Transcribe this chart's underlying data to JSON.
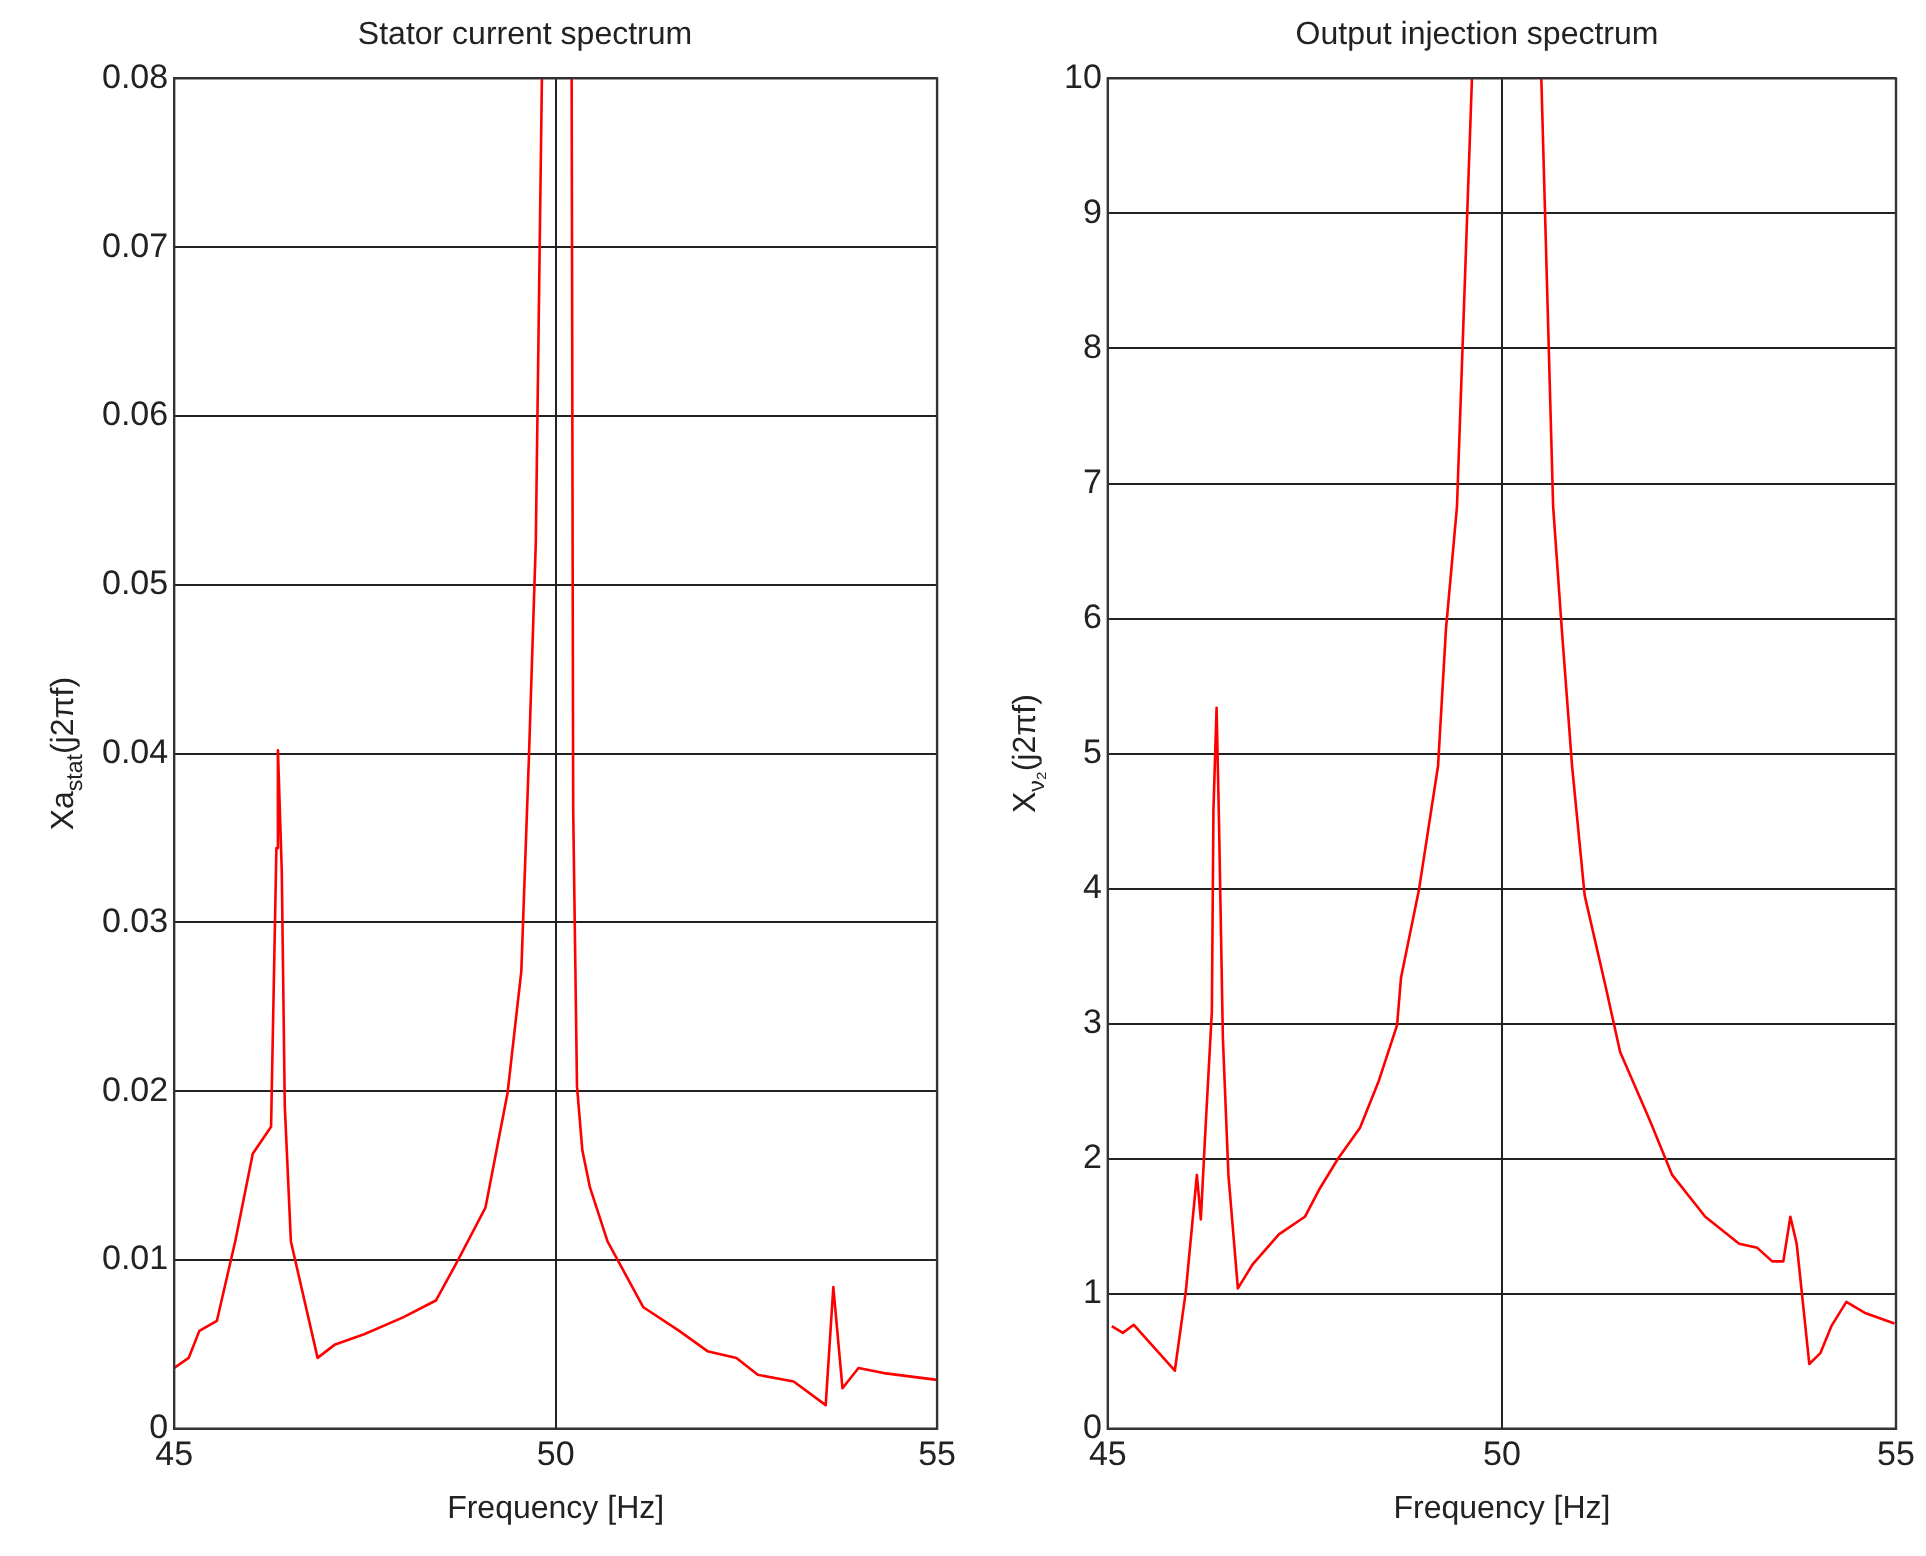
{
  "chart_data": [
    {
      "type": "line",
      "title": "Stator current spectrum",
      "xlabel": "Frequency [Hz]",
      "ylabel": "Xa$_{stat}$(j2πf)",
      "color": "#ff0000",
      "grid": true,
      "x": [
        45.0,
        45.19,
        45.33,
        45.56,
        45.8,
        46.03,
        46.27,
        46.34,
        46.36,
        46.41,
        46.45,
        46.53,
        46.88,
        47.11,
        47.49,
        48.0,
        48.43,
        48.71,
        49.08,
        49.37,
        49.55,
        49.65,
        49.74,
        49.82,
        50.0,
        50.21,
        50.23,
        50.28,
        50.35,
        50.45,
        50.68,
        51.15,
        51.62,
        51.99,
        52.37,
        52.65,
        53.12,
        53.54,
        53.64,
        53.76,
        53.97,
        54.3,
        55.0
      ],
      "values": [
        0.0036,
        0.0042,
        0.0058,
        0.0064,
        0.0111,
        0.0163,
        0.0179,
        0.0344,
        0.0402,
        0.0331,
        0.0191,
        0.0111,
        0.0042,
        0.005,
        0.0056,
        0.0066,
        0.0076,
        0.0099,
        0.0131,
        0.0199,
        0.0271,
        0.0398,
        0.0525,
        0.08,
        null,
        0.08,
        0.0367,
        0.0203,
        0.0165,
        0.0143,
        0.0111,
        0.0072,
        0.0058,
        0.0046,
        0.0042,
        0.0032,
        0.0028,
        0.0014,
        0.0084,
        0.0024,
        0.0036,
        0.0033,
        0.0029
      ],
      "xlim": [
        45,
        55
      ],
      "xticks": [
        45,
        50,
        55
      ],
      "ylim": [
        0,
        0.08
      ],
      "yticks": [
        0,
        0.01,
        0.02,
        0.03,
        0.04,
        0.05,
        0.06,
        0.07,
        0.08
      ]
    },
    {
      "type": "line",
      "title": "Output injection spectrum",
      "xlabel": "Frequency [Hz]",
      "ylabel": "X$_{ν₂}$(j2πf)",
      "color": "#ff0000",
      "grid": true,
      "x": [
        45.05,
        45.19,
        45.33,
        45.85,
        45.99,
        46.13,
        46.18,
        46.24,
        46.32,
        46.34,
        46.38,
        46.41,
        46.46,
        46.53,
        46.65,
        46.84,
        47.17,
        47.5,
        47.68,
        47.92,
        48.2,
        48.44,
        48.67,
        48.72,
        48.95,
        49.19,
        49.29,
        49.43,
        49.62,
        50.0,
        50.5,
        50.65,
        50.76,
        50.89,
        51.05,
        51.31,
        51.5,
        51.88,
        52.16,
        52.58,
        53.01,
        53.24,
        53.43,
        53.57,
        53.66,
        53.74,
        53.9,
        54.04,
        54.18,
        54.37,
        54.6,
        54.98
      ],
      "values": [
        0.76,
        0.71,
        0.77,
        0.43,
        1.02,
        1.88,
        1.55,
        2.23,
        3.09,
        4.58,
        5.34,
        4.51,
        2.89,
        1.88,
        1.04,
        1.22,
        1.44,
        1.57,
        1.77,
        2.0,
        2.23,
        2.58,
        2.99,
        3.34,
        4.0,
        4.91,
        5.92,
        6.83,
        10,
        null,
        10,
        6.83,
        5.92,
        4.91,
        3.95,
        3.29,
        2.79,
        2.28,
        1.88,
        1.57,
        1.37,
        1.34,
        1.24,
        1.24,
        1.57,
        1.37,
        0.48,
        0.56,
        0.76,
        0.94,
        0.86,
        0.78
      ],
      "xlim": [
        45,
        55
      ],
      "xticks": [
        45,
        50,
        55
      ],
      "ylim": [
        0,
        10
      ],
      "yticks": [
        0,
        1,
        2,
        3,
        4,
        5,
        6,
        7,
        8,
        9,
        10
      ]
    }
  ]
}
